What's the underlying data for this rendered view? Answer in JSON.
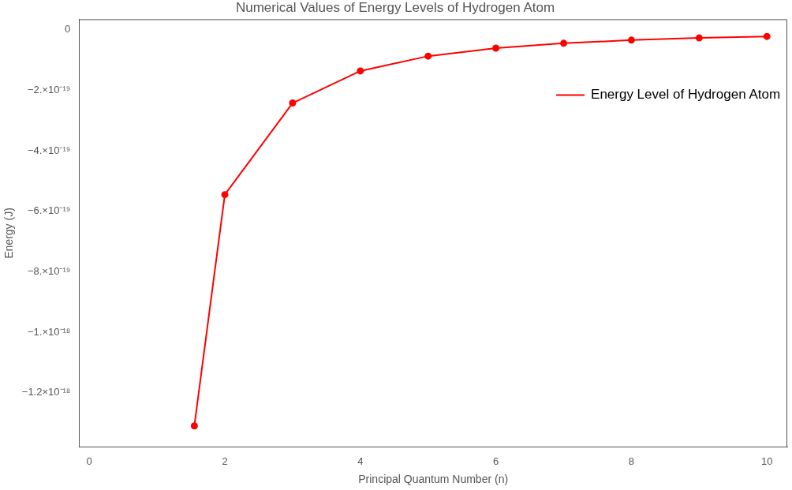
{
  "chart_data": {
    "type": "line",
    "title": "Numerical Values of Energy Levels of Hydrogen Atom",
    "xlabel": "Principal Quantum Number (n)",
    "ylabel": "Energy (J)",
    "series": [
      {
        "name": "Energy Level of Hydrogen Atom",
        "color": "#ff0000",
        "x": [
          1.55,
          2,
          3,
          4,
          5,
          6,
          7,
          8,
          9,
          10
        ],
        "values": [
          -1.31e-18,
          -5.45e-19,
          -2.42e-19,
          -1.36e-19,
          -8.7e-20,
          -6.05e-20,
          -4.45e-20,
          -3.4e-20,
          -2.69e-20,
          -2.18e-20
        ]
      }
    ],
    "xlim": [
      -0.15,
      10.3
    ],
    "xticks": [
      0,
      2,
      4,
      6,
      8,
      10
    ],
    "ylim": [
      -1.38e-18,
      3.5e-20
    ],
    "yticks": [
      {
        "value": 0,
        "label": "0"
      },
      {
        "value": -2e-19,
        "label": "−2.×10⁻¹⁹"
      },
      {
        "value": -4e-19,
        "label": "−4.×10⁻¹⁹"
      },
      {
        "value": -6e-19,
        "label": "−6.×10⁻¹⁹"
      },
      {
        "value": -8e-19,
        "label": "−8.×10⁻¹⁹"
      },
      {
        "value": -1e-18,
        "label": "−1.×10⁻¹⁸"
      },
      {
        "value": -1.2e-18,
        "label": "−1.2×10⁻¹⁸"
      }
    ],
    "grid": false,
    "legend": "top right",
    "marker": "circle",
    "line_style": "solid"
  }
}
